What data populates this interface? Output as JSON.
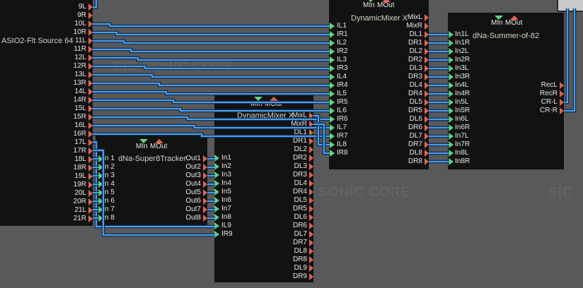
{
  "watermarks": {
    "logo_small": "S|C",
    "logo_text": "SONIC CORE"
  },
  "header_labels": {
    "min": "MIn",
    "mout": "MOut"
  },
  "colors": {
    "wire": "#4a9ef0",
    "output_port": "#e0634a",
    "input_port": "#5fd57d",
    "module_bg": "#121212",
    "canvas_bg": "#58595b"
  },
  "modules": {
    "asio": {
      "title": "ASIO2-Flt Source 64",
      "outputs": [
        "9L",
        "9R",
        "10L",
        "10R",
        "11L",
        "11R",
        "12L",
        "12R",
        "13L",
        "13R",
        "14L",
        "14R",
        "15L",
        "15R",
        "16L",
        "16R",
        "17L",
        "17R",
        "18L",
        "18R",
        "19L",
        "19R",
        "20L",
        "20R",
        "21L",
        "21R"
      ]
    },
    "super8": {
      "title": "dNa-Super8Tracker",
      "inputs": [
        "n 1",
        "n 2",
        "n 3",
        "n 4",
        "n 5",
        "n 6",
        "n 7",
        "n 8"
      ],
      "outputs": [
        "Out1",
        "Out2",
        "Out3",
        "Out4",
        "Out5",
        "Out6",
        "Out7",
        "Out8"
      ]
    },
    "mixer_lower": {
      "title": "DynamicMixer X",
      "inputs": [
        "In1",
        "In2",
        "In3",
        "In4",
        "In5",
        "In6",
        "In7",
        "In8",
        "IL9",
        "IR9"
      ],
      "outputs": [
        "MixL",
        "MixR",
        "DL1",
        "DR1",
        "DL2",
        "DR2",
        "DL3",
        "DR3",
        "DL4",
        "DR4",
        "DL5",
        "DR5",
        "DL6",
        "DR6",
        "DL7",
        "DR7",
        "DL8",
        "DR8",
        "DL9",
        "DR9"
      ]
    },
    "mixer_upper": {
      "title": "DynamicMixer X",
      "inputs": [
        "IL1",
        "IR1",
        "IL2",
        "IR2",
        "IL3",
        "IR3",
        "IL4",
        "IR4",
        "IL5",
        "IR5",
        "IL6",
        "IR6",
        "IL7",
        "IR7",
        "IL8",
        "IR8"
      ],
      "outputs": [
        "MixL",
        "MixR",
        "DL1",
        "DR1",
        "DL2",
        "DR2",
        "DL3",
        "DR3",
        "DL4",
        "DR4",
        "DL5",
        "DR5",
        "DL6",
        "DR6",
        "DL7",
        "DR7",
        "DL8",
        "DR8"
      ]
    },
    "summer": {
      "title": "dNa-Summer-of-82",
      "inputs": [
        "In1L",
        "In1R",
        "In2L",
        "In2R",
        "In3L",
        "In3R",
        "In4L",
        "In4R",
        "In5L",
        "In5R",
        "In6L",
        "In6R",
        "In7L",
        "In7R",
        "In8L",
        "In8R"
      ],
      "outputs": [
        "RecL",
        "RecR",
        "CR-L",
        "CR-R"
      ]
    }
  }
}
